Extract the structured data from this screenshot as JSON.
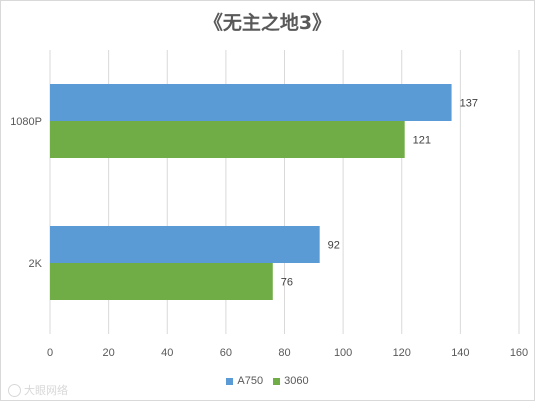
{
  "chart_data": {
    "type": "bar",
    "orientation": "horizontal",
    "title": "《无主之地3》",
    "categories": [
      "1080P",
      "2K"
    ],
    "series": [
      {
        "name": "A750",
        "color": "#5b9bd5",
        "values": [
          137,
          92
        ]
      },
      {
        "name": "3060",
        "color": "#70ad47",
        "values": [
          121,
          76
        ]
      }
    ],
    "xlim": [
      0,
      160
    ],
    "xticks": [
      0,
      20,
      40,
      60,
      80,
      100,
      120,
      140,
      160
    ],
    "grid": true,
    "legend_position": "bottom"
  },
  "watermark": "大眼网络"
}
